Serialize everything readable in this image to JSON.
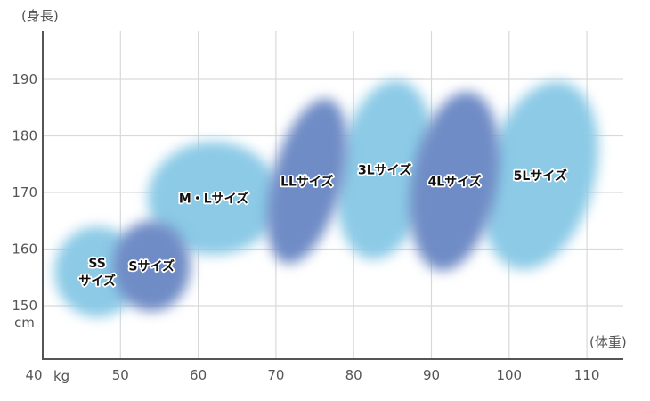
{
  "chart_data": {
    "type": "scatter",
    "title": "",
    "xlabel": "(体重)",
    "ylabel": "(身長)",
    "x_unit": "kg",
    "y_unit": "cm",
    "xlim": [
      40,
      115
    ],
    "ylim": [
      141,
      198
    ],
    "x_ticks": [
      "40",
      "50",
      "60",
      "70",
      "80",
      "90",
      "100",
      "110"
    ],
    "y_ticks": [
      "150",
      "160",
      "170",
      "180",
      "190"
    ],
    "grid": true,
    "colors": {
      "light": "#8ccae6",
      "dark": "#6f8cc6",
      "grid": "#d9d9d9",
      "axis": "#555555"
    },
    "regions": [
      {
        "label": [
          "SS",
          "サイズ"
        ],
        "cx": 47,
        "cy": 156,
        "rx": 5.5,
        "ry": 8,
        "tilt": 0,
        "shade": "light"
      },
      {
        "label": [
          "M・Lサイズ"
        ],
        "cx": 62,
        "cy": 169,
        "rx": 8.5,
        "ry": 10,
        "tilt": 0,
        "shade": "light"
      },
      {
        "label": [
          "Sサイズ"
        ],
        "cx": 54,
        "cy": 157,
        "rx": 5,
        "ry": 8,
        "tilt": 0,
        "shade": "dark"
      },
      {
        "label": [
          "3Lサイズ"
        ],
        "cx": 84,
        "cy": 174,
        "rx": 6,
        "ry": 16,
        "tilt": 10,
        "shade": "light"
      },
      {
        "label": [
          "5Lサイズ"
        ],
        "cx": 104,
        "cy": 173,
        "rx": 7,
        "ry": 17,
        "tilt": 15,
        "shade": "light"
      },
      {
        "label": [
          "LLサイズ"
        ],
        "cx": 74,
        "cy": 172,
        "rx": 4.5,
        "ry": 15,
        "tilt": 15,
        "shade": "dark"
      },
      {
        "label": [
          "4Lサイズ"
        ],
        "cx": 93,
        "cy": 172,
        "rx": 5.5,
        "ry": 16,
        "tilt": 10,
        "shade": "dark"
      }
    ]
  }
}
